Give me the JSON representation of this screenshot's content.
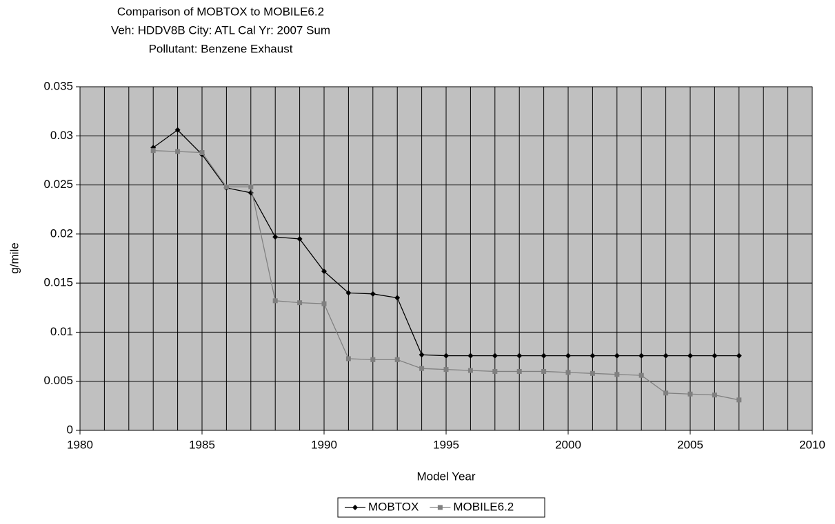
{
  "chart_data": {
    "type": "line",
    "title": [
      "Comparison of MOBTOX to MOBILE6.2",
      "Veh: HDDV8B   City: ATL   Cal Yr: 2007 Sum",
      "Pollutant: Benzene Exhaust"
    ],
    "x_label": "Model Year",
    "y_label": "g/mile",
    "x": [
      1983,
      1984,
      1985,
      1986,
      1987,
      1988,
      1989,
      1990,
      1991,
      1992,
      1993,
      1994,
      1995,
      1996,
      1997,
      1998,
      1999,
      2000,
      2001,
      2002,
      2003,
      2004,
      2005,
      2006,
      2007
    ],
    "series": [
      {
        "name": "MOBTOX",
        "color": "#000000",
        "marker": "diamond",
        "values": [
          0.0288,
          0.0306,
          0.0281,
          0.0247,
          0.0242,
          0.0197,
          0.0195,
          0.0162,
          0.014,
          0.0139,
          0.0135,
          0.0077,
          0.0076,
          0.0076,
          0.0076,
          0.0076,
          0.0076,
          0.0076,
          0.0076,
          0.0076,
          0.0076,
          0.0076,
          0.0076,
          0.0076,
          0.0076
        ]
      },
      {
        "name": "MOBILE6.2",
        "color": "#808080",
        "marker": "square",
        "values": [
          0.0285,
          0.0284,
          0.0283,
          0.0248,
          0.0248,
          0.0132,
          0.013,
          0.0129,
          0.0073,
          0.0072,
          0.0072,
          0.0063,
          0.0062,
          0.0061,
          0.006,
          0.006,
          0.006,
          0.0059,
          0.0058,
          0.0057,
          0.0056,
          0.0038,
          0.0037,
          0.0036,
          0.0031
        ]
      }
    ],
    "xlim": [
      1980,
      2010
    ],
    "xticks": [
      1980,
      1985,
      1990,
      1995,
      2000,
      2005,
      2010
    ],
    "xgrid": [
      1981,
      1982,
      1983,
      1984,
      1986,
      1987,
      1988,
      1989,
      1991,
      1992,
      1993,
      1994,
      1996,
      1997,
      1998,
      1999,
      2001,
      2002,
      2003,
      2004,
      2006,
      2007,
      2008,
      2009
    ],
    "ylim": [
      0,
      0.035
    ],
    "yticks": [
      0,
      0.005,
      0.01,
      0.015,
      0.02,
      0.025,
      0.03,
      0.035
    ],
    "grid": true,
    "plot_background": "#c0c0c0",
    "legend": "bottom"
  }
}
